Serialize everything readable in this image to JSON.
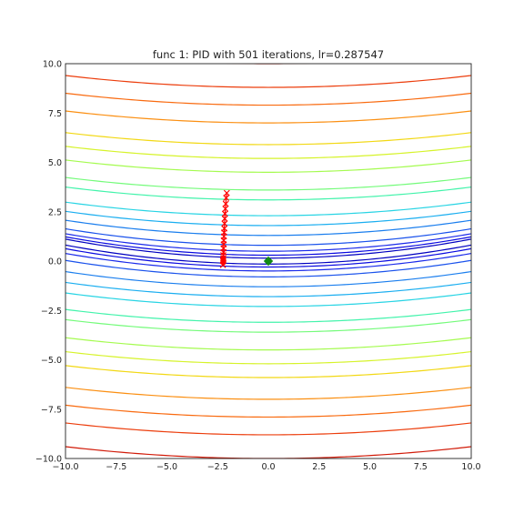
{
  "chart_data": {
    "type": "contour",
    "title": "func 1: PID with 501 iterations, lr=0.287547",
    "xlim": [
      -10.0,
      10.0
    ],
    "ylim": [
      -10.0,
      10.0
    ],
    "x_ticks": [
      "−10.0",
      "−7.5",
      "−5.0",
      "−2.5",
      "0.0",
      "2.5",
      "5.0",
      "7.5",
      "10.0"
    ],
    "y_ticks": [
      "10.0",
      "7.5",
      "5.0",
      "2.5",
      "0.0",
      "−2.5",
      "−5.0",
      "−7.5",
      "−10.0"
    ],
    "grid": false,
    "contour_levels": [
      {
        "y0": 10.0,
        "color": "#d11a08"
      },
      {
        "y0": 8.8,
        "color": "#ec3d0c"
      },
      {
        "y0": 7.9,
        "color": "#f96a0f"
      },
      {
        "y0": 7.0,
        "color": "#fb8f12"
      },
      {
        "y0": 5.9,
        "color": "#f2d813"
      },
      {
        "y0": 5.2,
        "color": "#d6f32a"
      },
      {
        "y0": 4.5,
        "color": "#a4fb4f"
      },
      {
        "y0": 3.6,
        "color": "#74fb7a"
      },
      {
        "y0": 3.1,
        "color": "#42f3ab"
      },
      {
        "y0": 2.3,
        "color": "#28d4e4"
      },
      {
        "y0": 1.8,
        "color": "#1aaef0"
      },
      {
        "y0": 1.3,
        "color": "#1a7eee"
      },
      {
        "y0": 0.8,
        "color": "#1a52ec"
      },
      {
        "y0": 0.5,
        "color": "#1a2aea"
      },
      {
        "y0": 0.3,
        "color": "#0a0ae0"
      },
      {
        "y0": 0.15,
        "color": "#0000c0"
      }
    ],
    "trajectory": {
      "color": "#ff0000",
      "marker": "x",
      "x": [
        -2.05,
        -2.08,
        -2.1,
        -2.12,
        -2.14,
        -2.15,
        -2.16,
        -2.17,
        -2.18,
        -2.19,
        -2.2,
        -2.2,
        -2.21,
        -2.21,
        -2.22,
        -2.22,
        -2.23,
        -2.23,
        -2.24
      ],
      "y": [
        3.45,
        3.2,
        2.9,
        2.65,
        2.4,
        2.15,
        1.9,
        1.65,
        1.45,
        1.25,
        1.05,
        0.85,
        0.65,
        0.45,
        0.3,
        0.15,
        0.05,
        0.0,
        -0.2
      ]
    },
    "optimum": {
      "x": 0.0,
      "y": 0.0,
      "color": "#138a13",
      "marker": "diamond"
    }
  }
}
